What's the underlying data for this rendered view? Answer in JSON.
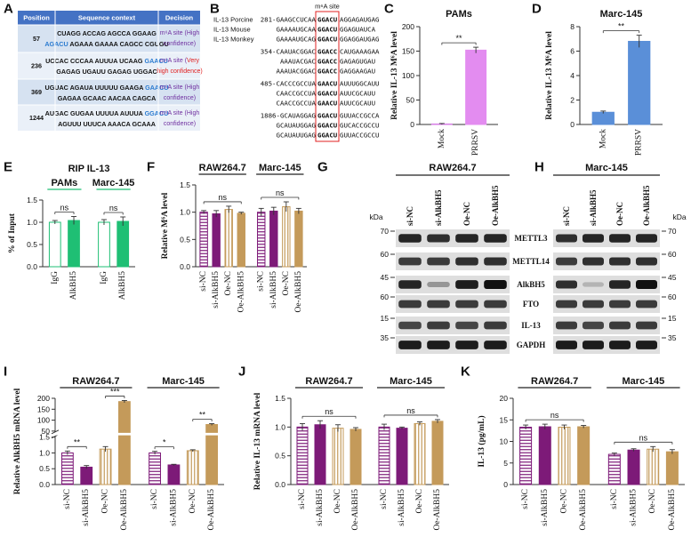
{
  "table": {
    "letter": "A",
    "header_color": "#4472c4",
    "columns": [
      "Position",
      "Sequence context",
      "Decision"
    ],
    "rows": [
      {
        "position": "57",
        "sequence": [
          [
            {
              "text": "CUAGG ACCAG AGCCA GGAAG"
            }
          ],
          [
            {
              "text": "AGACU",
              "color": "#2b7bd0"
            },
            {
              "text": " AGAAA GAAAA CAGCC CGUGU"
            }
          ]
        ],
        "decision": [
          [
            {
              "text": "m⁶A site (High",
              "color": "#7030a0"
            }
          ],
          [
            {
              "text": "confidence)",
              "color": "#7030a0"
            }
          ]
        ]
      },
      {
        "position": "236",
        "sequence": [
          [
            {
              "text": "UCCAC CCCAA AUUUA UCAAG "
            },
            {
              "text": "GAACU",
              "color": "#2b7bd0"
            }
          ],
          [
            {
              "text": "GAGAG UGAUU GAGAG UGGAC"
            }
          ]
        ],
        "decision": [
          [
            {
              "text": "m⁶A site (",
              "color": "#7030a0"
            },
            {
              "text": "Very",
              "color": "#e02020"
            }
          ],
          [
            {
              "text": "high confidence)",
              "color": "#e02020"
            }
          ]
        ]
      },
      {
        "position": "369",
        "sequence": [
          [
            {
              "text": "UGUAC AGAUA UUUUU GAAGA "
            },
            {
              "text": "GAACU",
              "color": "#2b7bd0"
            }
          ],
          [
            {
              "text": "GAGAA GCAAC AACAA CAGCA"
            }
          ]
        ],
        "decision": [
          [
            {
              "text": "m⁶A site (High",
              "color": "#7030a0"
            }
          ],
          [
            {
              "text": "confidence)",
              "color": "#7030a0"
            }
          ]
        ]
      },
      {
        "position": "1244",
        "sequence": [
          [
            {
              "text": "AUGAC GUGAA UUUUA AUUUA "
            },
            {
              "text": "GGACU",
              "color": "#2b7bd0"
            }
          ],
          [
            {
              "text": "AGUUU UUUCA AAACA GCAAA"
            }
          ]
        ],
        "decision": [
          [
            {
              "text": "m⁶A site (High",
              "color": "#7030a0"
            }
          ],
          [
            {
              "text": "confidence)",
              "color": "#7030a0"
            }
          ]
        ]
      }
    ]
  },
  "sequences": {
    "letter": "B",
    "site_label": "m⁶A site",
    "site_color": "#e02020",
    "species": [
      "IL-13 Porcine",
      "IL-13 Mouse",
      "IL-13 Monkey"
    ],
    "blocks": [
      [
        [
          {
            "text": "281-GAAGCCUCAA"
          },
          {
            "text": "GGACU",
            "color": "#2b7bd0"
          },
          {
            "text": "AGGAGAUGAG"
          }
        ],
        [
          {
            "text": "GAAAAUGCAA"
          },
          {
            "text": "GGACU",
            "color": "#2b7bd0"
          },
          {
            "text": "GGAGUAUCA"
          }
        ],
        [
          {
            "text": "GAAAAUGCAG"
          },
          {
            "text": "GGACU",
            "color": "#2b7bd0"
          },
          {
            "text": "GGAGGAUGAG"
          }
        ]
      ],
      [
        [
          {
            "text": "354-CAAUACGGAC"
          },
          {
            "text": "GGACC",
            "color": "#2b7bd0"
          },
          {
            "text": "CAUGAAAGAA"
          }
        ],
        [
          {
            "text": "AAAUACGAC"
          },
          {
            "text": "GGACC",
            "color": "#2b7bd0"
          },
          {
            "text": "GAGAGUGAU"
          }
        ],
        [
          {
            "text": "AAAUACGGAC"
          },
          {
            "text": "GGACC",
            "color": "#2b7bd0"
          },
          {
            "text": "GAGGAAGAU"
          }
        ]
      ],
      [
        [
          {
            "text": "485-CACCCGCCUA"
          },
          {
            "text": "GAACU",
            "color": "#2b7bd0"
          },
          {
            "text": "AUUUGGCAUU"
          }
        ],
        [
          {
            "text": "CAACCGCCUA"
          },
          {
            "text": "GGACU",
            "color": "#2b7bd0"
          },
          {
            "text": "AUUCGCAUU"
          }
        ],
        [
          {
            "text": "CAACCGCCUA"
          },
          {
            "text": "GAACU",
            "color": "#2b7bd0"
          },
          {
            "text": "AUUCGCAUU"
          }
        ]
      ],
      [
        [
          {
            "text": "1886-GCAUAGGAG"
          },
          {
            "text": "GGACU",
            "color": "#2b7bd0"
          },
          {
            "text": "GUUACCGCCA"
          }
        ],
        [
          {
            "text": "GCAUAUGGAG"
          },
          {
            "text": "GGACU",
            "color": "#2b7bd0"
          },
          {
            "text": "GUCACCGCCU"
          }
        ],
        [
          {
            "text": "GCAUAUUGAG"
          },
          {
            "text": "GGACU",
            "color": "#2b7bd0"
          },
          {
            "text": "GUUACCGCCU"
          }
        ]
      ]
    ]
  },
  "chart_data": [
    {
      "type": "bar",
      "letter": "C",
      "title": "PAMs",
      "ylabel": "Relative IL-13 M⁶A level",
      "ylim": [
        0,
        200
      ],
      "yticks": [
        0,
        50,
        100,
        150,
        200
      ],
      "bar_style": [
        "outline",
        "solid"
      ],
      "bar_color": [
        "#d77fe6",
        "#e38cf0"
      ],
      "groups": [
        {
          "categories": [
            "Mock",
            "PRRSV"
          ],
          "values": [
            1,
            152
          ],
          "errors": [
            1,
            6
          ],
          "sig": [
            {
              "pair": [
                0,
                1
              ],
              "label": "**"
            }
          ]
        }
      ]
    },
    {
      "type": "bar",
      "letter": "D",
      "title": "Marc-145",
      "ylabel": "Relative IL-13 M⁶A level",
      "ylim": [
        0,
        8
      ],
      "yticks": [
        0,
        2,
        4,
        6,
        8
      ],
      "bar_style": [
        "solid",
        "solid"
      ],
      "bar_color": [
        "#5a8fd8",
        "#5a8fd8"
      ],
      "groups": [
        {
          "categories": [
            "Mock",
            "PRRSV"
          ],
          "values": [
            1,
            6.8
          ],
          "errors": [
            0.1,
            0.5
          ],
          "sig": [
            {
              "pair": [
                0,
                1
              ],
              "label": "**"
            }
          ]
        }
      ]
    },
    {
      "type": "bar",
      "letter": "E",
      "title": "RIP IL-13",
      "ylabel": "% of Input",
      "ylim": [
        0,
        1.5
      ],
      "yticks": [
        {
          "value": 0,
          "label": "0.0"
        },
        0.5,
        {
          "value": 1,
          "label": "1.0"
        },
        1.5
      ],
      "bar_style": [
        "outline",
        "solid"
      ],
      "bar_color": [
        "#1fbf74",
        "#1fbf74"
      ],
      "groups": [
        {
          "name": "PAMs",
          "categories": [
            "IgG",
            "AlkBH5"
          ],
          "values": [
            1.0,
            1.04
          ],
          "errors": [
            0.04,
            0.09
          ],
          "sig": [
            {
              "pair": [
                0,
                1
              ],
              "label": "ns"
            }
          ]
        },
        {
          "name": "Marc-145",
          "categories": [
            "IgG",
            "AlkBH5"
          ],
          "values": [
            1.0,
            1.02
          ],
          "errors": [
            0.06,
            0.1
          ],
          "sig": [
            {
              "pair": [
                0,
                1
              ],
              "label": "ns"
            }
          ]
        }
      ]
    },
    {
      "type": "bar",
      "letter": "F",
      "ylabel": "Relative M⁶A level",
      "ylim": [
        0,
        1.5
      ],
      "yticks": [
        {
          "value": 0,
          "label": "0.0"
        },
        0.5,
        {
          "value": 1,
          "label": "1.0"
        },
        1.5
      ],
      "bar_style": [
        "hstripe",
        "solid",
        "vstripe",
        "solid"
      ],
      "bar_color": [
        "#7d1a78",
        "#7d1a78",
        "#c49a5a",
        "#c49a5a"
      ],
      "groups": [
        {
          "name": "RAW264.7",
          "categories": [
            "si-NC",
            "si-AlkBH5",
            "Oe-NC",
            "Oe-AlkBH5"
          ],
          "values": [
            1.0,
            0.97,
            1.05,
            0.98
          ],
          "errors": [
            0.03,
            0.06,
            0.06,
            0.02
          ],
          "sig": [
            {
              "pair": [
                0,
                3
              ],
              "label": "ns"
            }
          ]
        },
        {
          "name": "Marc-145",
          "categories": [
            "si-NC",
            "si-AlkBH5",
            "Oe-NC",
            "Oe-AlkBH5"
          ],
          "values": [
            1.0,
            1.02,
            1.1,
            1.02
          ],
          "errors": [
            0.07,
            0.07,
            0.09,
            0.05
          ],
          "sig": [
            {
              "pair": [
                0,
                3
              ],
              "label": "ns"
            }
          ]
        }
      ]
    },
    {
      "type": "bar",
      "letter": "I",
      "ylabel": "Relative AlkBH5 mRNA level",
      "ylim": [
        0,
        200
      ],
      "y_break": [
        1.5,
        50
      ],
      "yticks": [
        {
          "value": 0,
          "label": "0.0"
        },
        0.5,
        {
          "value": 1,
          "label": "1.0"
        },
        1.5,
        50,
        100,
        150,
        200
      ],
      "bar_style": [
        "hstripe",
        "solid",
        "vstripe",
        "solid"
      ],
      "bar_color": [
        "#7d1a78",
        "#7d1a78",
        "#c49a5a",
        "#c49a5a"
      ],
      "groups": [
        {
          "name": "RAW264.7",
          "categories": [
            "si-NC",
            "si-AlkBH5",
            "Oe-NC",
            "Oe-AlkBH5"
          ],
          "values": [
            1.0,
            0.55,
            1.12,
            185
          ],
          "errors": [
            0.06,
            0.05,
            0.08,
            5
          ],
          "sig": [
            {
              "pair": [
                0,
                1
              ],
              "label": "**"
            },
            {
              "pair": [
                2,
                3
              ],
              "label": "***"
            }
          ]
        },
        {
          "name": "Marc-145",
          "categories": [
            "si-NC",
            "si-AlkBH5",
            "Oe-NC",
            "Oe-AlkBH5"
          ],
          "values": [
            1.0,
            0.62,
            1.07,
            80
          ],
          "errors": [
            0.05,
            0.02,
            0.03,
            4
          ],
          "sig": [
            {
              "pair": [
                0,
                1
              ],
              "label": "*"
            },
            {
              "pair": [
                2,
                3
              ],
              "label": "**"
            }
          ]
        }
      ]
    },
    {
      "type": "bar",
      "letter": "J",
      "ylabel": "Relative IL-13 mRNA level",
      "ylim": [
        0,
        1.5
      ],
      "yticks": [
        {
          "value": 0,
          "label": "0.0"
        },
        0.5,
        {
          "value": 1,
          "label": "1.0"
        },
        1.5
      ],
      "bar_style": [
        "hstripe",
        "solid",
        "vstripe",
        "solid"
      ],
      "bar_color": [
        "#7d1a78",
        "#7d1a78",
        "#c49a5a",
        "#c49a5a"
      ],
      "groups": [
        {
          "name": "RAW264.7",
          "categories": [
            "si-NC",
            "si-AlkBH5",
            "Oe-NC",
            "Oe-AlkBH5"
          ],
          "values": [
            1.0,
            1.04,
            0.98,
            0.96
          ],
          "errors": [
            0.06,
            0.07,
            0.06,
            0.03
          ],
          "sig": [
            {
              "pair": [
                0,
                3
              ],
              "label": "ns"
            }
          ]
        },
        {
          "name": "Marc-145",
          "categories": [
            "si-NC",
            "si-AlkBH5",
            "Oe-NC",
            "Oe-AlkBH5"
          ],
          "values": [
            1.0,
            0.98,
            1.06,
            1.1
          ],
          "errors": [
            0.05,
            0.02,
            0.03,
            0.03
          ],
          "sig": [
            {
              "pair": [
                0,
                3
              ],
              "label": "ns"
            }
          ]
        }
      ]
    },
    {
      "type": "bar",
      "letter": "K",
      "ylabel": "IL-13 (pg/mL)",
      "ylim": [
        0,
        20
      ],
      "yticks": [
        0,
        5,
        10,
        15,
        20
      ],
      "bar_style": [
        "hstripe",
        "solid",
        "vstripe",
        "solid"
      ],
      "bar_color": [
        "#7d1a78",
        "#7d1a78",
        "#c49a5a",
        "#c49a5a"
      ],
      "groups": [
        {
          "name": "RAW264.7",
          "categories": [
            "si-NC",
            "si-AlkBH5",
            "Oe-NC",
            "Oe-AlkBH5"
          ],
          "values": [
            13.3,
            13.4,
            13.3,
            13.4
          ],
          "errors": [
            0.5,
            0.6,
            0.5,
            0.3
          ],
          "sig": [
            {
              "pair": [
                0,
                3
              ],
              "label": "ns"
            }
          ]
        },
        {
          "name": "Marc-145",
          "categories": [
            "si-NC",
            "si-AlkBH5",
            "Oe-NC",
            "Oe-AlkBH5"
          ],
          "values": [
            7.0,
            8.0,
            8.2,
            7.6
          ],
          "errors": [
            0.3,
            0.3,
            0.6,
            0.5
          ],
          "sig": [
            {
              "pair": [
                0,
                3
              ],
              "label": "ns"
            }
          ]
        }
      ]
    }
  ],
  "blots": {
    "proteins": [
      "METTL3",
      "METTL14",
      "AlkBH5",
      "FTO",
      "IL-13",
      "GAPDH"
    ],
    "panels": [
      {
        "letter": "G",
        "title": "RAW264.7",
        "lanes": [
          "si-NC",
          "si-AlkBH5",
          "Oe-NC",
          "Oe-AlkBH5"
        ],
        "kda_unit": "kDa",
        "kda": [
          70,
          60,
          45,
          60,
          15,
          35
        ]
      },
      {
        "letter": "H",
        "title": "Marc-145",
        "lanes": [
          "si-NC",
          "si-AlkBH5",
          "Oe-NC",
          "Oe-AlkBH5"
        ],
        "kda_unit": "kDa",
        "kda": [
          70,
          60,
          45,
          60,
          15,
          35
        ]
      }
    ]
  }
}
